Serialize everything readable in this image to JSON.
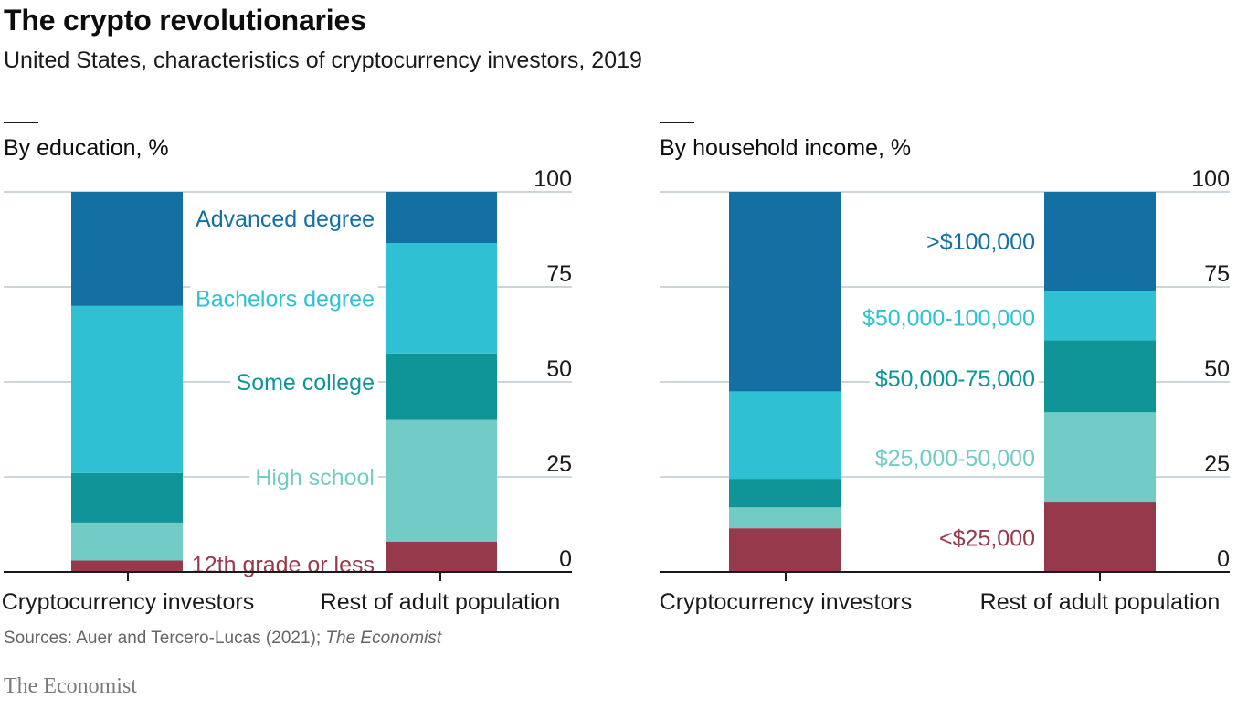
{
  "title": "The crypto revolutionaries",
  "subtitle": "United States, characteristics of cryptocurrency investors, 2019",
  "source": {
    "prefix": "Sources: Auer and Tercero-Lucas (2021); ",
    "italic": "The Economist"
  },
  "brand": "The Economist",
  "chart_data": [
    {
      "type": "bar",
      "stacked": true,
      "title": "By education, %",
      "categories": [
        "Cryptocurrency investors",
        "Rest of adult population"
      ],
      "ylim": [
        0,
        100
      ],
      "yticks": [
        0,
        25,
        50,
        75,
        100
      ],
      "series": [
        {
          "name": "12th grade or less",
          "values": [
            3,
            8
          ],
          "color": "#963a4b"
        },
        {
          "name": "High school",
          "values": [
            10,
            32
          ],
          "color": "#73cbc6"
        },
        {
          "name": "Some college",
          "values": [
            13,
            17.5
          ],
          "color": "#0f9498"
        },
        {
          "name": "Bachelors degree",
          "values": [
            44,
            29
          ],
          "color": "#2fc1d3"
        },
        {
          "name": "Advanced degree",
          "values": [
            30,
            13.5
          ],
          "color": "#1470a3"
        }
      ],
      "label_values": [
        2,
        25,
        50,
        72,
        93
      ]
    },
    {
      "type": "bar",
      "stacked": true,
      "title": "By household income, %",
      "categories": [
        "Cryptocurrency investors",
        "Rest of adult population"
      ],
      "ylim": [
        0,
        100
      ],
      "yticks": [
        0,
        25,
        50,
        75,
        100
      ],
      "series": [
        {
          "name": "<$25,000",
          "values": [
            11.5,
            18.5
          ],
          "color": "#963a4b"
        },
        {
          "name": "$25,000-50,000",
          "values": [
            5.5,
            23.5
          ],
          "color": "#73cbc6"
        },
        {
          "name": "$50,000-75,000",
          "values": [
            7.5,
            19
          ],
          "color": "#0f9498"
        },
        {
          "name": "$50,000-100,000",
          "values": [
            23,
            13
          ],
          "color": "#2fc1d3"
        },
        {
          "name": ">$100,000",
          "values": [
            52.5,
            26
          ],
          "color": "#1470a3"
        }
      ],
      "label_values": [
        9,
        30,
        51,
        67,
        87
      ]
    }
  ]
}
